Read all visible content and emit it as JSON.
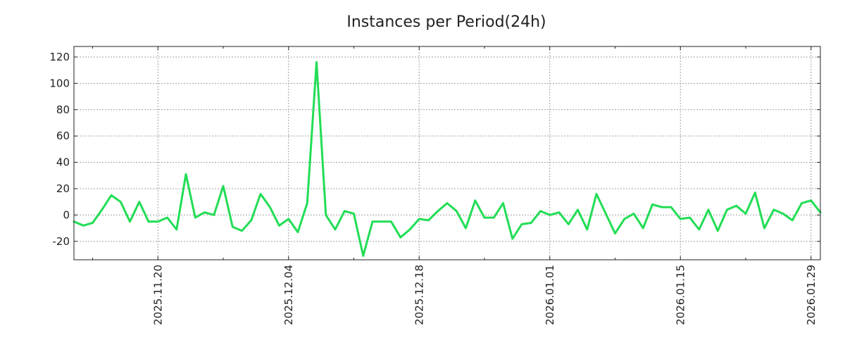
{
  "chart_data": {
    "type": "line",
    "title": "Instances per Period(24h)",
    "xlabel": "",
    "ylabel": "",
    "x_start": "2025-11-11",
    "x_end": "2026-01-30",
    "ylim": [
      -34,
      128
    ],
    "yticks": [
      -20,
      0,
      20,
      40,
      60,
      80,
      100,
      120
    ],
    "xticks": [
      {
        "date": "2025-11-20",
        "label": "2025.11.20"
      },
      {
        "date": "2025-12-04",
        "label": "2025.12.04"
      },
      {
        "date": "2025-12-18",
        "label": "2025.12.18"
      },
      {
        "date": "2026-01-01",
        "label": "2026.01.01"
      },
      {
        "date": "2026-01-15",
        "label": "2026.01.15"
      },
      {
        "date": "2026-01-29",
        "label": "2026.01.29"
      }
    ],
    "minor_ticks": [
      "2025-11-13",
      "2025-11-27",
      "2025-12-11",
      "2025-12-25",
      "2026-01-08",
      "2026-01-22"
    ],
    "grid": true,
    "line_color": "#22dd55",
    "series": [
      {
        "values": [
          [
            "2025-11-11",
            -5
          ],
          [
            "2025-11-12",
            -8
          ],
          [
            "2025-11-13",
            -6
          ],
          [
            "2025-11-14",
            4
          ],
          [
            "2025-11-15",
            15
          ],
          [
            "2025-11-16",
            10
          ],
          [
            "2025-11-17",
            -5
          ],
          [
            "2025-11-18",
            10
          ],
          [
            "2025-11-19",
            -5
          ],
          [
            "2025-11-20",
            -5
          ],
          [
            "2025-11-21",
            -2
          ],
          [
            "2025-11-22",
            -11
          ],
          [
            "2025-11-23",
            31
          ],
          [
            "2025-11-24",
            -2
          ],
          [
            "2025-11-25",
            2
          ],
          [
            "2025-11-26",
            0
          ],
          [
            "2025-11-27",
            22
          ],
          [
            "2025-11-28",
            -9
          ],
          [
            "2025-11-29",
            -12
          ],
          [
            "2025-11-30",
            -4
          ],
          [
            "2025-12-01",
            16
          ],
          [
            "2025-12-02",
            6
          ],
          [
            "2025-12-03",
            -8
          ],
          [
            "2025-12-04",
            -3
          ],
          [
            "2025-12-05",
            -13
          ],
          [
            "2025-12-06",
            9
          ],
          [
            "2025-12-07",
            116
          ],
          [
            "2025-12-08",
            0
          ],
          [
            "2025-12-09",
            -11
          ],
          [
            "2025-12-10",
            3
          ],
          [
            "2025-12-11",
            1
          ],
          [
            "2025-12-12",
            -31
          ],
          [
            "2025-12-13",
            -5
          ],
          [
            "2025-12-14",
            -5
          ],
          [
            "2025-12-15",
            -5
          ],
          [
            "2025-12-16",
            -17
          ],
          [
            "2025-12-17",
            -11
          ],
          [
            "2025-12-18",
            -3
          ],
          [
            "2025-12-19",
            -4
          ],
          [
            "2025-12-20",
            3
          ],
          [
            "2025-12-21",
            9
          ],
          [
            "2025-12-22",
            3
          ],
          [
            "2025-12-23",
            -10
          ],
          [
            "2025-12-24",
            11
          ],
          [
            "2025-12-25",
            -2
          ],
          [
            "2025-12-26",
            -2
          ],
          [
            "2025-12-27",
            9
          ],
          [
            "2025-12-28",
            -18
          ],
          [
            "2025-12-29",
            -7
          ],
          [
            "2025-12-30",
            -6
          ],
          [
            "2025-12-31",
            3
          ],
          [
            "2026-01-01",
            0
          ],
          [
            "2026-01-02",
            2
          ],
          [
            "2026-01-03",
            -7
          ],
          [
            "2026-01-04",
            4
          ],
          [
            "2026-01-05",
            -11
          ],
          [
            "2026-01-06",
            16
          ],
          [
            "2026-01-07",
            1
          ],
          [
            "2026-01-08",
            -14
          ],
          [
            "2026-01-09",
            -3
          ],
          [
            "2026-01-10",
            1
          ],
          [
            "2026-01-11",
            -10
          ],
          [
            "2026-01-12",
            8
          ],
          [
            "2026-01-13",
            6
          ],
          [
            "2026-01-14",
            6
          ],
          [
            "2026-01-15",
            -3
          ],
          [
            "2026-01-16",
            -2
          ],
          [
            "2026-01-17",
            -11
          ],
          [
            "2026-01-18",
            4
          ],
          [
            "2026-01-19",
            -12
          ],
          [
            "2026-01-20",
            4
          ],
          [
            "2026-01-21",
            7
          ],
          [
            "2026-01-22",
            1
          ],
          [
            "2026-01-23",
            17
          ],
          [
            "2026-01-24",
            -10
          ],
          [
            "2026-01-25",
            4
          ],
          [
            "2026-01-26",
            1
          ],
          [
            "2026-01-27",
            -4
          ],
          [
            "2026-01-28",
            9
          ],
          [
            "2026-01-29",
            11
          ],
          [
            "2026-01-30",
            2
          ]
        ]
      }
    ]
  }
}
